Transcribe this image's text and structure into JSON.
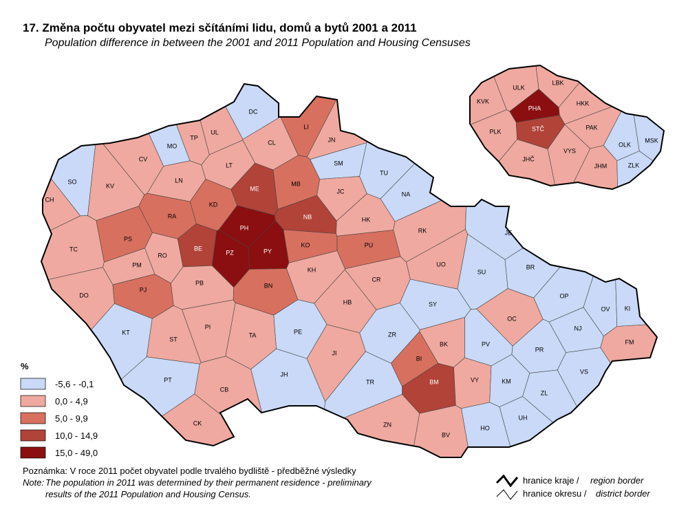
{
  "header": {
    "title": "17. Změna počtu obyvatel mezi sčítáními lidu, domů a bytů 2001 a 2011",
    "subtitle": "Population difference in between the 2001 and 2011 Population and Housing Censuses"
  },
  "legend": {
    "title": "%",
    "classes": [
      {
        "label": "-5,6 -  -0,1",
        "color": "#c9d9f7"
      },
      {
        "label": "0,0 -   4,9",
        "color": "#efa9a0"
      },
      {
        "label": "5,0 -   9,9",
        "color": "#d8705f"
      },
      {
        "label": "10,0 - 14,9",
        "color": "#b14338"
      },
      {
        "label": "15,0 - 49,0",
        "color": "#8b0f10"
      }
    ]
  },
  "districts": [
    {
      "code": "DC",
      "class": 0
    },
    {
      "code": "MO",
      "class": 0
    },
    {
      "code": "SO",
      "class": 0
    },
    {
      "code": "CH",
      "class": 1
    },
    {
      "code": "KV",
      "class": 1
    },
    {
      "code": "CV",
      "class": 1
    },
    {
      "code": "TP",
      "class": 1
    },
    {
      "code": "UL",
      "class": 1
    },
    {
      "code": "LN",
      "class": 1
    },
    {
      "code": "LT",
      "class": 1
    },
    {
      "code": "CL",
      "class": 1
    },
    {
      "code": "LI",
      "class": 2
    },
    {
      "code": "JN",
      "class": 1
    },
    {
      "code": "SM",
      "class": 0
    },
    {
      "code": "TU",
      "class": 0
    },
    {
      "code": "NA",
      "class": 0
    },
    {
      "code": "ME",
      "class": 3
    },
    {
      "code": "MB",
      "class": 2
    },
    {
      "code": "KD",
      "class": 2
    },
    {
      "code": "RA",
      "class": 2
    },
    {
      "code": "PH",
      "class": 4
    },
    {
      "code": "NB",
      "class": 3
    },
    {
      "code": "JC",
      "class": 1
    },
    {
      "code": "HK",
      "class": 1
    },
    {
      "code": "RK",
      "class": 1
    },
    {
      "code": "TC",
      "class": 1
    },
    {
      "code": "PS",
      "class": 2
    },
    {
      "code": "BE",
      "class": 3
    },
    {
      "code": "PZ",
      "class": 4
    },
    {
      "code": "PY",
      "class": 4
    },
    {
      "code": "KO",
      "class": 2
    },
    {
      "code": "PU",
      "class": 2
    },
    {
      "code": "PM",
      "class": 1
    },
    {
      "code": "RO",
      "class": 1
    },
    {
      "code": "UO",
      "class": 1
    },
    {
      "code": "KH",
      "class": 1
    },
    {
      "code": "JE",
      "class": 0
    },
    {
      "code": "SU",
      "class": 0
    },
    {
      "code": "BR",
      "class": 0
    },
    {
      "code": "DO",
      "class": 1
    },
    {
      "code": "PJ",
      "class": 2
    },
    {
      "code": "PB",
      "class": 1
    },
    {
      "code": "BN",
      "class": 2
    },
    {
      "code": "CR",
      "class": 1
    },
    {
      "code": "SY",
      "class": 0
    },
    {
      "code": "OP",
      "class": 0
    },
    {
      "code": "OV",
      "class": 0
    },
    {
      "code": "KI",
      "class": 0
    },
    {
      "code": "HB",
      "class": 1
    },
    {
      "code": "OC",
      "class": 1
    },
    {
      "code": "NJ",
      "class": 0
    },
    {
      "code": "KT",
      "class": 0
    },
    {
      "code": "ST",
      "class": 1
    },
    {
      "code": "PI",
      "class": 1
    },
    {
      "code": "TA",
      "class": 1
    },
    {
      "code": "PE",
      "class": 0
    },
    {
      "code": "ZR",
      "class": 0
    },
    {
      "code": "BK",
      "class": 1
    },
    {
      "code": "FM",
      "class": 1
    },
    {
      "code": "PV",
      "class": 0
    },
    {
      "code": "PR",
      "class": 0
    },
    {
      "code": "JI",
      "class": 1
    },
    {
      "code": "BI",
      "class": 2
    },
    {
      "code": "BM",
      "class": 3
    },
    {
      "code": "VY",
      "class": 1
    },
    {
      "code": "VS",
      "class": 0
    },
    {
      "code": "KM",
      "class": 0
    },
    {
      "code": "PT",
      "class": 0
    },
    {
      "code": "JH",
      "class": 0
    },
    {
      "code": "TR",
      "class": 0
    },
    {
      "code": "CB",
      "class": 1
    },
    {
      "code": "ZL",
      "class": 0
    },
    {
      "code": "CK",
      "class": 1
    },
    {
      "code": "ZN",
      "class": 1
    },
    {
      "code": "UH",
      "class": 0
    },
    {
      "code": "HO",
      "class": 0
    },
    {
      "code": "BV",
      "class": 1
    }
  ],
  "regions": [
    {
      "code": "ULK",
      "class": 1
    },
    {
      "code": "LBK",
      "class": 1
    },
    {
      "code": "KVK",
      "class": 1
    },
    {
      "code": "PHA",
      "class": 4
    },
    {
      "code": "HKK",
      "class": 1
    },
    {
      "code": "PLK",
      "class": 1
    },
    {
      "code": "STČ",
      "class": 3
    },
    {
      "code": "PAK",
      "class": 1
    },
    {
      "code": "OLK",
      "class": 0
    },
    {
      "code": "MSK",
      "class": 0
    },
    {
      "code": "VYS",
      "class": 1
    },
    {
      "code": "JHČ",
      "class": 1
    },
    {
      "code": "JHM",
      "class": 1
    },
    {
      "code": "ZLK",
      "class": 0
    }
  ],
  "notes": {
    "cz": "Poznámka: V roce 2011 počet obyvatel podle trvalého bydliště - předběžné výsledky",
    "en_label": "Note:",
    "en_line1": "The population in 2011 was determined by their permanent residence - preliminary",
    "en_line2": "results of the 2011 Population and Housing Census."
  },
  "border_legend": {
    "region": {
      "cz": "hranice kraje /",
      "en": "region border"
    },
    "district": {
      "cz": "hranice okresu /",
      "en": "district border"
    }
  }
}
